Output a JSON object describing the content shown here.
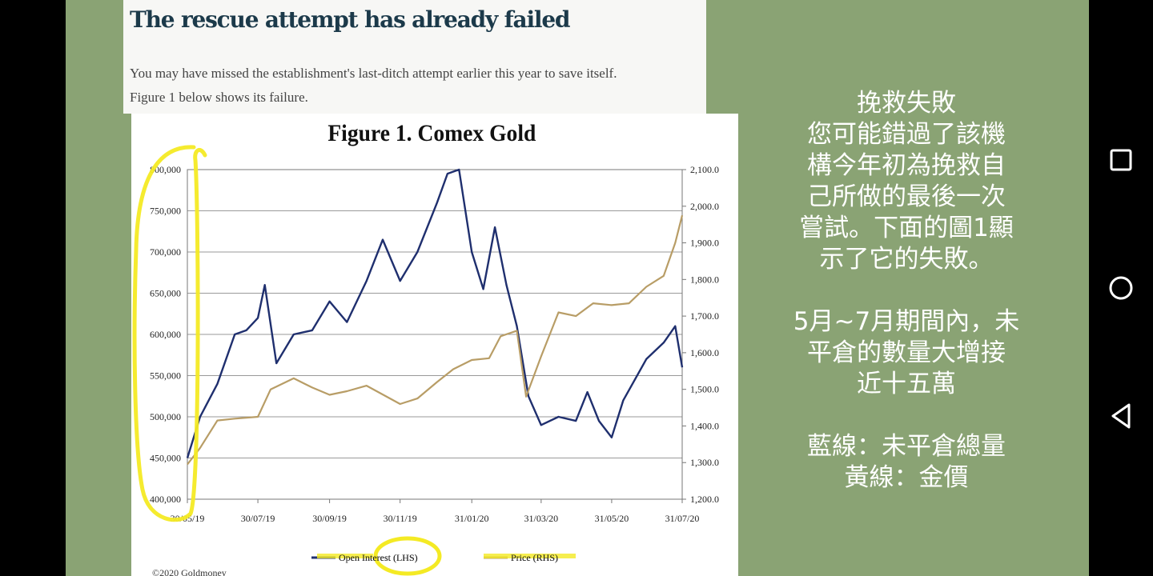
{
  "article": {
    "headline": "The rescue attempt has already failed",
    "body_line1": "You may have missed the establishment's last-ditch attempt earlier this year to save itself.",
    "body_line2": "Figure 1 below shows its failure."
  },
  "chart_data": {
    "type": "line",
    "title": "Figure 1. Comex Gold",
    "x_ticks": [
      "30/05/19",
      "30/07/19",
      "30/09/19",
      "30/11/19",
      "31/01/20",
      "31/03/20",
      "31/05/20",
      "31/07/20"
    ],
    "y_left": {
      "range": [
        400000,
        800000
      ],
      "ticks": [
        "400,000",
        "450,000",
        "500,000",
        "550,000",
        "600,000",
        "650,000",
        "700,000",
        "750,000",
        "800,000"
      ]
    },
    "y_right": {
      "range": [
        1200,
        2100
      ],
      "ticks": [
        "1,200.0",
        "1,300.0",
        "1,400.0",
        "1,500.0",
        "1,600.0",
        "1,700.0",
        "1,800.0",
        "1,900.0",
        "2,000.0",
        "2,100.0"
      ]
    },
    "grid": true,
    "legend_placement": "bottom",
    "series": [
      {
        "name": "Open Interest (LHS)",
        "axis": "left",
        "color": "#1f2f6e",
        "points": [
          [
            "30/05/19",
            450000
          ],
          [
            "10/06/19",
            500000
          ],
          [
            "25/06/19",
            540000
          ],
          [
            "10/07/19",
            600000
          ],
          [
            "20/07/19",
            605000
          ],
          [
            "30/07/19",
            620000
          ],
          [
            "05/08/19",
            660000
          ],
          [
            "15/08/19",
            565000
          ],
          [
            "30/08/19",
            600000
          ],
          [
            "15/09/19",
            605000
          ],
          [
            "30/09/19",
            640000
          ],
          [
            "15/10/19",
            615000
          ],
          [
            "01/11/19",
            665000
          ],
          [
            "15/11/19",
            715000
          ],
          [
            "30/11/19",
            665000
          ],
          [
            "15/12/19",
            700000
          ],
          [
            "01/01/20",
            760000
          ],
          [
            "10/01/20",
            795000
          ],
          [
            "20/01/20",
            800000
          ],
          [
            "31/01/20",
            700000
          ],
          [
            "10/02/20",
            655000
          ],
          [
            "20/02/20",
            730000
          ],
          [
            "01/03/20",
            660000
          ],
          [
            "10/03/20",
            610000
          ],
          [
            "20/03/20",
            525000
          ],
          [
            "31/03/20",
            490000
          ],
          [
            "15/04/20",
            500000
          ],
          [
            "30/04/20",
            495000
          ],
          [
            "10/05/20",
            530000
          ],
          [
            "20/05/20",
            495000
          ],
          [
            "31/05/20",
            475000
          ],
          [
            "10/06/20",
            520000
          ],
          [
            "30/06/20",
            570000
          ],
          [
            "15/07/20",
            590000
          ],
          [
            "25/07/20",
            610000
          ],
          [
            "31/07/20",
            560000
          ]
        ]
      },
      {
        "name": "Price (RHS)",
        "axis": "right",
        "color": "#b89d66",
        "points": [
          [
            "30/05/19",
            1295
          ],
          [
            "10/06/19",
            1340
          ],
          [
            "25/06/19",
            1415
          ],
          [
            "10/07/19",
            1420
          ],
          [
            "30/07/19",
            1425
          ],
          [
            "10/08/19",
            1500
          ],
          [
            "30/08/19",
            1530
          ],
          [
            "15/09/19",
            1505
          ],
          [
            "30/09/19",
            1485
          ],
          [
            "15/10/19",
            1495
          ],
          [
            "01/11/19",
            1510
          ],
          [
            "30/11/19",
            1460
          ],
          [
            "15/12/19",
            1475
          ],
          [
            "01/01/20",
            1520
          ],
          [
            "15/01/20",
            1555
          ],
          [
            "31/01/20",
            1580
          ],
          [
            "15/02/20",
            1585
          ],
          [
            "25/02/20",
            1645
          ],
          [
            "10/03/20",
            1660
          ],
          [
            "18/03/20",
            1480
          ],
          [
            "31/03/20",
            1590
          ],
          [
            "15/04/20",
            1710
          ],
          [
            "30/04/20",
            1700
          ],
          [
            "15/05/20",
            1735
          ],
          [
            "31/05/20",
            1730
          ],
          [
            "15/06/20",
            1735
          ],
          [
            "30/06/20",
            1780
          ],
          [
            "15/07/20",
            1810
          ],
          [
            "25/07/20",
            1900
          ],
          [
            "31/07/20",
            1975
          ]
        ]
      }
    ],
    "footer": "©2020 Goldmoney"
  },
  "notes": {
    "lines": [
      "挽救失敗",
      "您可能錯過了該機",
      "構今年初為挽救自",
      "己所做的最後一次",
      "嘗試。下面的圖1顯",
      "示了它的失敗。"
    ],
    "lines2": [
      "5月~7月期間內，未",
      "平倉的數量大增接",
      "近十五萬"
    ],
    "lines3": [
      "藍線：未平倉總量",
      "黃線：金價"
    ]
  },
  "nav": {
    "icons": [
      "square-recents-icon",
      "circle-home-icon",
      "triangle-back-icon"
    ]
  }
}
